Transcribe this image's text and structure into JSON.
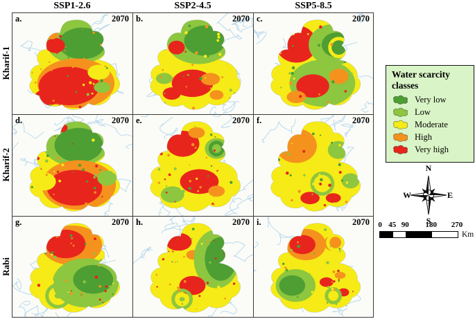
{
  "figure": {
    "columns": [
      "SSP1-2.6",
      "SSP2-4.5",
      "SSP5-8.5"
    ],
    "rows": [
      "Kharif-1",
      "Kharif-2",
      "Rabi"
    ],
    "panels": [
      {
        "letter": "a.",
        "year": "2070"
      },
      {
        "letter": "b.",
        "year": "2070"
      },
      {
        "letter": "c.",
        "year": "2070"
      },
      {
        "letter": "d.",
        "year": "2070"
      },
      {
        "letter": "e.",
        "year": "2070"
      },
      {
        "letter": "f.",
        "year": "2070"
      },
      {
        "letter": "g.",
        "year": "2070"
      },
      {
        "letter": "h.",
        "year": "2070"
      },
      {
        "letter": "i.",
        "year": "2070"
      }
    ]
  },
  "legend": {
    "title": "Water scarcity classes",
    "items": [
      {
        "label": "Very low",
        "color": "#4d9e33"
      },
      {
        "label": "Low",
        "color": "#8dc63f"
      },
      {
        "label": "Moderate",
        "color": "#f6eb16"
      },
      {
        "label": "High",
        "color": "#f5921e"
      },
      {
        "label": "Very high",
        "color": "#e8251d"
      }
    ]
  },
  "compass": {
    "n": "N",
    "e": "E",
    "s": "S",
    "w": "W"
  },
  "scalebar": {
    "ticks": [
      "0",
      "45",
      "90",
      "180",
      "270"
    ],
    "unit": "Km"
  }
}
